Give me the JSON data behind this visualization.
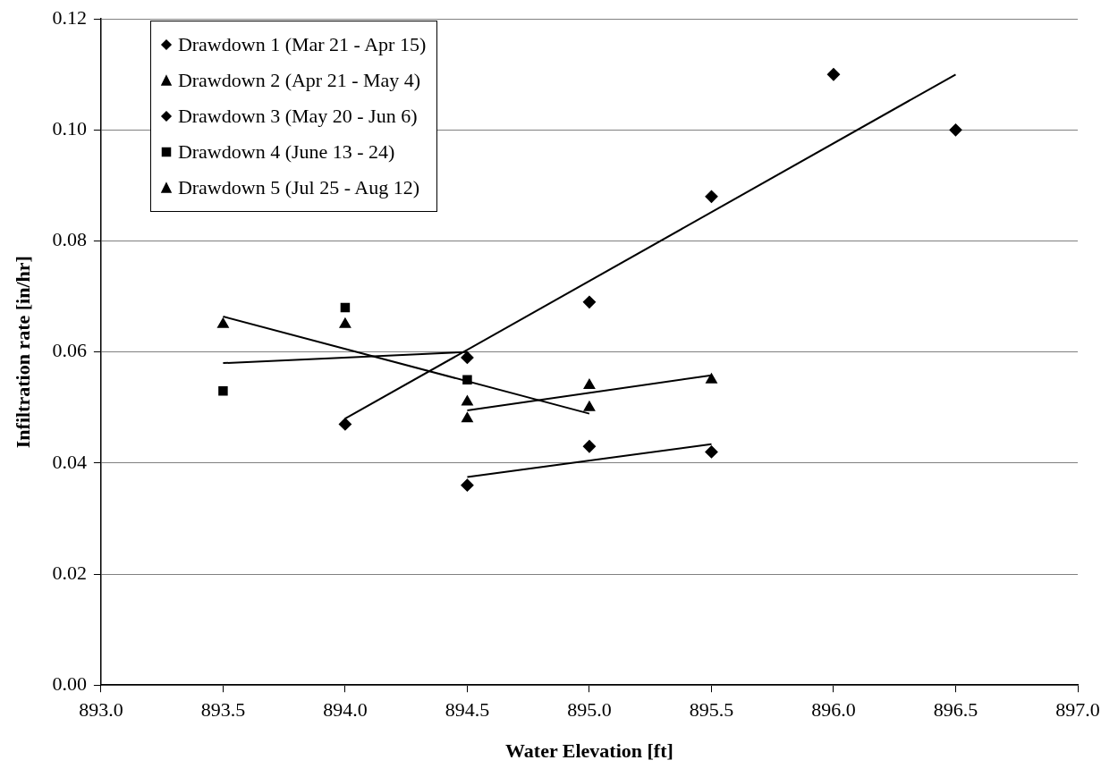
{
  "chart_data": {
    "type": "scatter",
    "xlabel": "Water Elevation [ft]",
    "ylabel": "Infiltration rate [in/hr]",
    "xlim": [
      893,
      897
    ],
    "xticks": [
      {
        "value": 893,
        "label": "893.0"
      },
      {
        "value": 893.5,
        "label": "893.5"
      },
      {
        "value": 894,
        "label": "894.0"
      },
      {
        "value": 894.5,
        "label": "894.5"
      },
      {
        "value": 895,
        "label": "895.0"
      },
      {
        "value": 895.5,
        "label": "895.5"
      },
      {
        "value": 896,
        "label": "896.0"
      },
      {
        "value": 896.5,
        "label": "896.5"
      },
      {
        "value": 897,
        "label": "897.0"
      }
    ],
    "ylim": [
      0,
      0.12
    ],
    "yticks": [
      {
        "value": 0,
        "label": "0.00"
      },
      {
        "value": 0.02,
        "label": "0.02"
      },
      {
        "value": 0.04,
        "label": "0.04"
      },
      {
        "value": 0.06,
        "label": "0.06"
      },
      {
        "value": 0.08,
        "label": "0.08"
      },
      {
        "value": 0.1,
        "label": "0.10"
      },
      {
        "value": 0.12,
        "label": "0.12"
      }
    ],
    "grid": "y",
    "legend": "top left",
    "series": [
      {
        "name": "Drawdown 1 (Mar 21 - Apr 15)",
        "color": "#000000",
        "marker": "diamond",
        "x": [
          894.5,
          895,
          895.5
        ],
        "values": [
          0.036,
          0.043,
          0.042
        ]
      },
      {
        "name": "Drawdown 2 (Apr 21 - May 4)",
        "color": "#000000",
        "marker": "triangle",
        "x": [
          894.5,
          895,
          895.5
        ],
        "values": [
          0.048,
          0.054,
          0.055
        ]
      },
      {
        "name": "Drawdown 3 (May 20 - Jun 6)",
        "color": "#000000",
        "marker": "diamond",
        "x": [
          894,
          894.5,
          895,
          895.5,
          896,
          896.5
        ],
        "values": [
          0.047,
          0.059,
          0.069,
          0.088,
          0.11,
          0.1
        ]
      },
      {
        "name": "Drawdown 4 (June 13 - 24)",
        "color": "#000000",
        "marker": "square",
        "x": [
          893.5,
          894,
          894.5
        ],
        "values": [
          0.053,
          0.068,
          0.055
        ]
      },
      {
        "name": "Drawdown 5 (Jul 25 - Aug 12)",
        "color": "#000000",
        "marker": "triangle",
        "x": [
          893.5,
          894,
          894.5,
          895
        ],
        "values": [
          0.065,
          0.065,
          0.051,
          0.05
        ]
      },
      {
        "type": "line",
        "color": "#000000",
        "marker": "none",
        "x": [
          894.5,
          895.5
        ],
        "values": [
          0.0375,
          0.0434
        ]
      },
      {
        "type": "line",
        "color": "#000000",
        "marker": "none",
        "x": [
          894.5,
          895.5
        ],
        "values": [
          0.0495,
          0.0558
        ]
      },
      {
        "type": "line",
        "color": "#000000",
        "marker": "none",
        "x": [
          894,
          896.5
        ],
        "values": [
          0.048,
          0.11
        ]
      },
      {
        "type": "line",
        "color": "#000000",
        "marker": "none",
        "x": [
          893.5,
          894.5
        ],
        "values": [
          0.058,
          0.06
        ]
      },
      {
        "type": "line",
        "color": "#000000",
        "marker": "none",
        "x": [
          893.5,
          895
        ],
        "values": [
          0.0664,
          0.0489
        ]
      }
    ]
  }
}
